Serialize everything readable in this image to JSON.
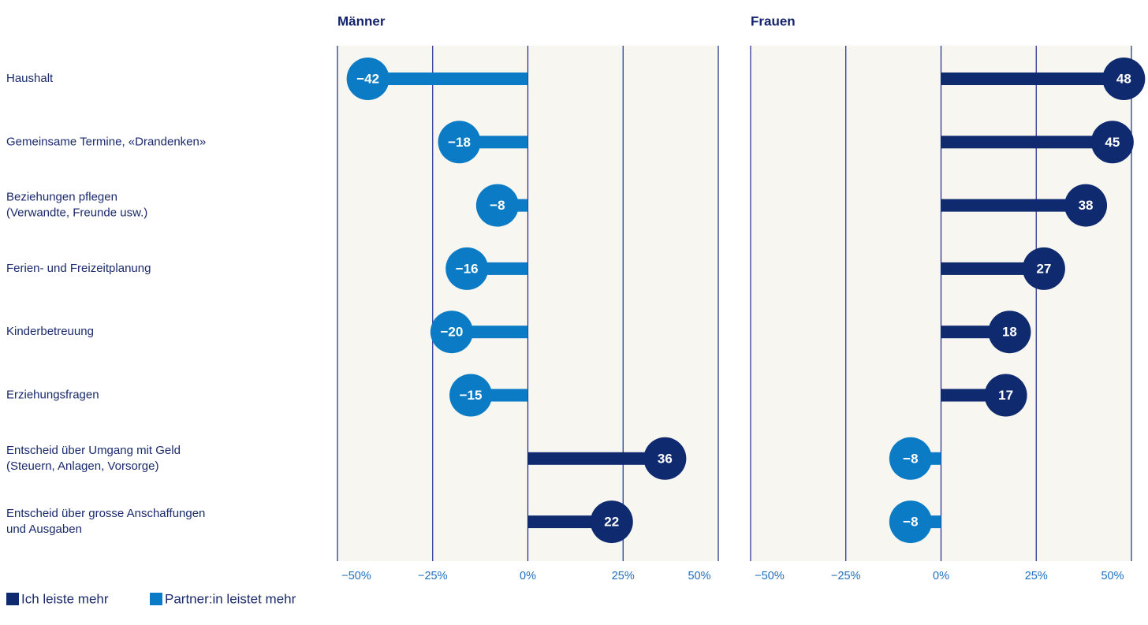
{
  "chart_data": {
    "type": "bar",
    "orientation": "horizontal",
    "categories": [
      [
        "Haushalt"
      ],
      [
        "Gemeinsame Termine, «Drandenken»"
      ],
      [
        "Beziehungen pflegen",
        "(Verwandte, Freunde usw.)"
      ],
      [
        "Ferien- und Freizeitplanung"
      ],
      [
        "Kinderbetreuung"
      ],
      [
        "Erziehungsfragen"
      ],
      [
        "Entscheid über Umgang mit Geld",
        "(Steuern, Anlagen, Vorsorge)"
      ],
      [
        "Entscheid über grosse Anschaffungen",
        "und Ausgaben"
      ]
    ],
    "xlim": [
      -50,
      50
    ],
    "ticks": [
      -50,
      -25,
      0,
      25,
      50
    ],
    "tick_labels": [
      "−50%",
      "−25%",
      "0%",
      "25%",
      "50%"
    ],
    "panels": [
      {
        "title": "Männer",
        "values": [
          -42,
          -18,
          -8,
          -16,
          -20,
          -15,
          36,
          22
        ]
      },
      {
        "title": "Frauen",
        "values": [
          48,
          45,
          38,
          27,
          18,
          17,
          -8,
          -8
        ]
      }
    ],
    "series": [
      {
        "name": "Ich leiste mehr",
        "color": "#0f2a6e"
      },
      {
        "name": "Partner:in leistet mehr",
        "color": "#0a7bc4"
      }
    ],
    "panel_background": "#f7f6f0",
    "gridline_color": "#1a2a8a",
    "legend_position": "bottom-left"
  }
}
